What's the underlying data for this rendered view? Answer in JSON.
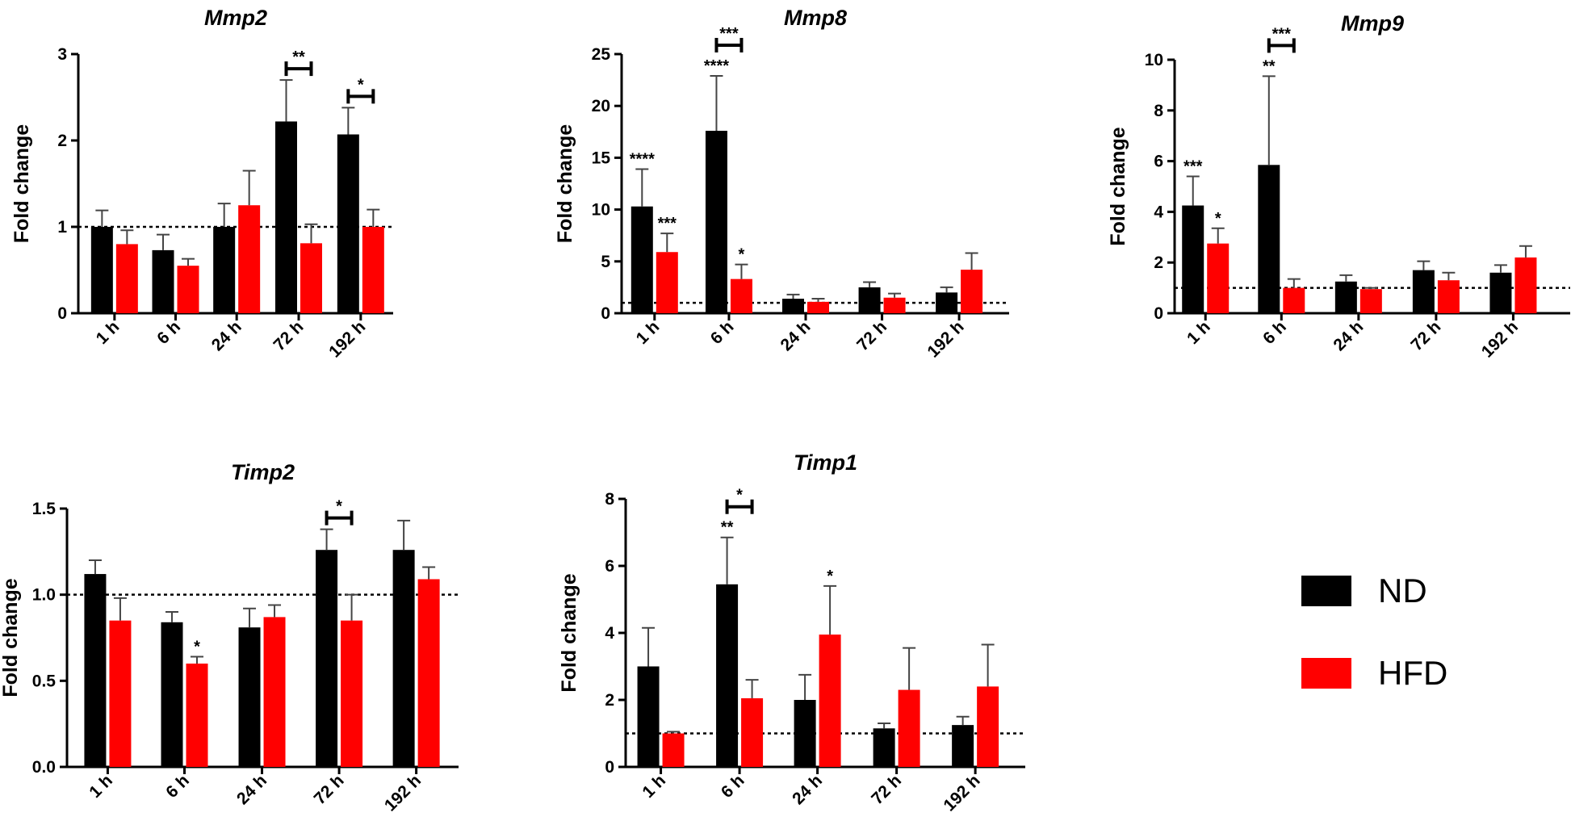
{
  "colors": {
    "nd": "#000000",
    "hfd": "#ff0000",
    "axis": "#000000"
  },
  "legend": [
    {
      "label": "ND",
      "color": "#000000"
    },
    {
      "label": "HFD",
      "color": "#ff0000"
    }
  ],
  "chart_data": [
    {
      "type": "bar",
      "title": "Mmp2",
      "ylabel": "Fold change",
      "categories": [
        "1 h",
        "6 h",
        "24 h",
        "72 h",
        "192 h"
      ],
      "ylim": [
        0,
        3
      ],
      "yticks": [
        "0",
        "1",
        "2",
        "3"
      ],
      "reference_line": 1,
      "series": [
        {
          "name": "ND",
          "values": [
            1.0,
            0.73,
            1.0,
            2.22,
            2.07
          ],
          "errors": [
            0.19,
            0.18,
            0.27,
            0.48,
            0.31
          ],
          "annotations": [
            "",
            "",
            "",
            "",
            ""
          ]
        },
        {
          "name": "HFD",
          "values": [
            0.8,
            0.55,
            1.25,
            0.81,
            1.0
          ],
          "errors": [
            0.16,
            0.08,
            0.4,
            0.22,
            0.2
          ],
          "annotations": [
            "",
            "",
            "",
            "",
            ""
          ]
        }
      ],
      "brackets": [
        {
          "category": "72 h",
          "label": "**"
        },
        {
          "category": "192 h",
          "label": "*"
        }
      ]
    },
    {
      "type": "bar",
      "title": "Mmp8",
      "ylabel": "Fold change",
      "categories": [
        "1 h",
        "6 h",
        "24 h",
        "72 h",
        "192 h"
      ],
      "ylim": [
        0,
        25
      ],
      "yticks": [
        "0",
        "5",
        "10",
        "15",
        "20",
        "25"
      ],
      "reference_line": 1,
      "series": [
        {
          "name": "ND",
          "values": [
            10.3,
            17.6,
            1.4,
            2.5,
            2.0
          ],
          "errors": [
            3.6,
            5.3,
            0.4,
            0.5,
            0.5
          ],
          "annotations": [
            "****",
            "****",
            "",
            "",
            ""
          ]
        },
        {
          "name": "HFD",
          "values": [
            5.9,
            3.3,
            1.1,
            1.5,
            4.2
          ],
          "errors": [
            1.8,
            1.4,
            0.3,
            0.4,
            1.6
          ],
          "annotations": [
            "***",
            "*",
            "",
            "",
            ""
          ]
        }
      ],
      "brackets": [
        {
          "category": "6 h",
          "label": "***"
        }
      ]
    },
    {
      "type": "bar",
      "title": "Mmp9",
      "ylabel": "Fold change",
      "categories": [
        "1 h",
        "6 h",
        "24 h",
        "72 h",
        "192 h"
      ],
      "ylim": [
        0,
        10
      ],
      "yticks": [
        "0",
        "2",
        "4",
        "6",
        "8",
        "10"
      ],
      "reference_line": 1,
      "series": [
        {
          "name": "ND",
          "values": [
            4.25,
            5.85,
            1.25,
            1.7,
            1.6
          ],
          "errors": [
            1.15,
            3.5,
            0.25,
            0.35,
            0.3
          ],
          "annotations": [
            "***",
            "**",
            "",
            "",
            ""
          ]
        },
        {
          "name": "HFD",
          "values": [
            2.75,
            1.0,
            0.95,
            1.3,
            2.2
          ],
          "errors": [
            0.6,
            0.35,
            0.05,
            0.3,
            0.45
          ],
          "annotations": [
            "*",
            "",
            "",
            "",
            ""
          ]
        }
      ],
      "brackets": [
        {
          "category": "6 h",
          "label": "***"
        }
      ]
    },
    {
      "type": "bar",
      "title": "Timp2",
      "ylabel": "Fold change",
      "categories": [
        "1 h",
        "6 h",
        "24 h",
        "72 h",
        "192 h"
      ],
      "ylim": [
        0,
        1.5
      ],
      "yticks": [
        "0.0",
        "0.5",
        "1.0",
        "1.5"
      ],
      "reference_line": 1,
      "series": [
        {
          "name": "ND",
          "values": [
            1.12,
            0.84,
            0.81,
            1.26,
            1.26
          ],
          "errors": [
            0.08,
            0.06,
            0.11,
            0.12,
            0.17
          ],
          "annotations": [
            "",
            "",
            "",
            "",
            ""
          ]
        },
        {
          "name": "HFD",
          "values": [
            0.85,
            0.6,
            0.87,
            0.85,
            1.09
          ],
          "errors": [
            0.13,
            0.04,
            0.07,
            0.15,
            0.07
          ],
          "annotations": [
            "",
            "*",
            "",
            "",
            ""
          ]
        }
      ],
      "brackets": [
        {
          "category": "72 h",
          "label": "*"
        }
      ]
    },
    {
      "type": "bar",
      "title": "Timp1",
      "ylabel": "Fold change",
      "categories": [
        "1 h",
        "6 h",
        "24 h",
        "72 h",
        "192 h"
      ],
      "ylim": [
        0,
        8
      ],
      "yticks": [
        "0",
        "2",
        "4",
        "6",
        "8"
      ],
      "reference_line": 1,
      "series": [
        {
          "name": "ND",
          "values": [
            3.0,
            5.45,
            2.0,
            1.15,
            1.25
          ],
          "errors": [
            1.15,
            1.4,
            0.75,
            0.15,
            0.25
          ],
          "annotations": [
            "",
            "**",
            "",
            "",
            ""
          ]
        },
        {
          "name": "HFD",
          "values": [
            1.0,
            2.05,
            3.95,
            2.3,
            2.4
          ],
          "errors": [
            0.05,
            0.55,
            1.45,
            1.25,
            1.25
          ],
          "annotations": [
            "",
            "",
            "*",
            "",
            ""
          ]
        }
      ],
      "brackets": [
        {
          "category": "6 h",
          "label": "*"
        }
      ]
    }
  ]
}
